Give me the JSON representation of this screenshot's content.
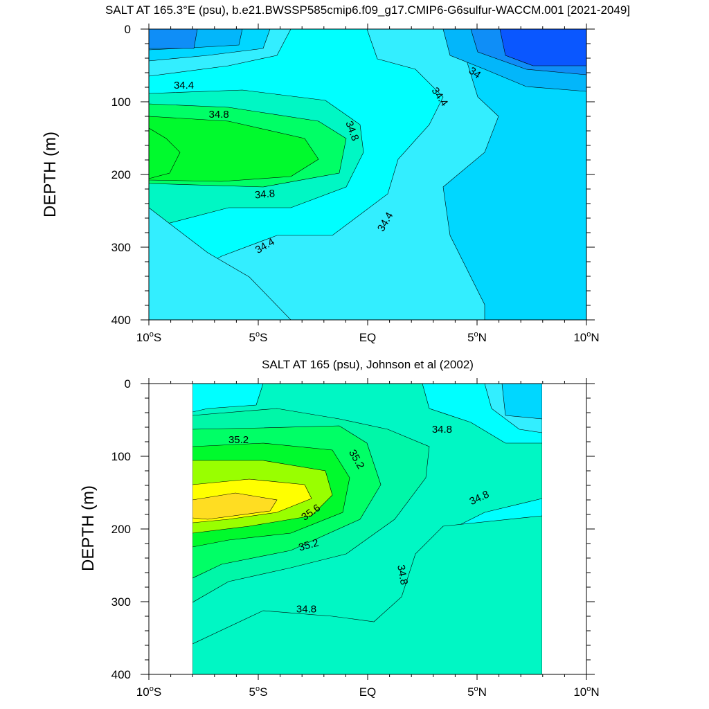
{
  "chart_data": [
    {
      "type": "contour",
      "title": "SALT AT 165.3°E (psu), b.e21.BWSSP585cmip6.f09_g17.CMIP6-G6sulfur-WACCM.001 [2021-2049]",
      "ylabel": "DEPTH (m)",
      "xlabel": "",
      "xlim": [
        -10,
        10
      ],
      "ylim": [
        400,
        0
      ],
      "x_ticks": [
        {
          "value": -10,
          "label": "10°S"
        },
        {
          "value": -5,
          "label": "5°S"
        },
        {
          "value": 0,
          "label": "EQ"
        },
        {
          "value": 5,
          "label": "5°N"
        },
        {
          "value": 10,
          "label": "10°N"
        }
      ],
      "y_ticks": [
        0,
        100,
        200,
        300,
        400
      ],
      "contour_labels": [
        {
          "text": "34.4",
          "lat": -8.4,
          "depth": 77,
          "angle": 0
        },
        {
          "text": "34.8",
          "lat": -6.8,
          "depth": 117,
          "angle": 0
        },
        {
          "text": "34.8",
          "lat": -0.7,
          "depth": 140,
          "angle": 70
        },
        {
          "text": "34.8",
          "lat": -4.7,
          "depth": 227,
          "angle": -5
        },
        {
          "text": "34.4",
          "lat": 0.8,
          "depth": 265,
          "angle": -60
        },
        {
          "text": "34.4",
          "lat": -4.7,
          "depth": 298,
          "angle": -30
        },
        {
          "text": "34.4",
          "lat": 3.3,
          "depth": 93,
          "angle": 55
        },
        {
          "text": "34",
          "lat": 4.9,
          "depth": 60,
          "angle": 35
        }
      ],
      "color_levels": {
        "c_337": "#0a57ff",
        "c_340": "#0f8ef7",
        "c_342": "#03b6fa",
        "c_344": "#00d7ff",
        "c_346": "#33eeff",
        "c_348": "#00ffff",
        "c_350": "#00f7c4",
        "c_352": "#00ff66",
        "c_354": "#00fa2d"
      }
    },
    {
      "type": "contour",
      "title": "SALT AT 165 (psu), Johnson et al (2002)",
      "ylabel": "DEPTH (m)",
      "xlabel": "",
      "xlim": [
        -10,
        10
      ],
      "ylim": [
        400,
        0
      ],
      "data_lat_range": [
        -8,
        8
      ],
      "x_ticks": [
        {
          "value": -10,
          "label": "10°S"
        },
        {
          "value": -5,
          "label": "5°S"
        },
        {
          "value": 0,
          "label": "EQ"
        },
        {
          "value": 5,
          "label": "5°N"
        },
        {
          "value": 10,
          "label": "10°N"
        }
      ],
      "y_ticks": [
        0,
        100,
        200,
        300,
        400
      ],
      "contour_labels": [
        {
          "text": "35.2",
          "lat": -5.9,
          "depth": 77,
          "angle": 0
        },
        {
          "text": "35.2",
          "lat": -0.5,
          "depth": 104,
          "angle": 60
        },
        {
          "text": "35.6",
          "lat": -2.6,
          "depth": 177,
          "angle": -35
        },
        {
          "text": "35.2",
          "lat": -2.7,
          "depth": 222,
          "angle": -15
        },
        {
          "text": "34.8",
          "lat": 3.4,
          "depth": 63,
          "angle": 0
        },
        {
          "text": "34.8",
          "lat": 5.1,
          "depth": 157,
          "angle": -25
        },
        {
          "text": "34.8",
          "lat": 1.6,
          "depth": 263,
          "angle": 80
        },
        {
          "text": "34.8",
          "lat": -2.8,
          "depth": 310,
          "angle": 0
        }
      ],
      "color_levels": {
        "c_344": "#00d7ff",
        "c_346": "#33eeff",
        "c_348": "#00ffff",
        "c_350": "#00f7c4",
        "c_352": "#00f7a8",
        "c_354": "#00ff66",
        "c_356": "#00fa2d",
        "c_358": "#99ff00",
        "c_360": "#ffff00",
        "c_362": "#ffdd22"
      }
    }
  ]
}
